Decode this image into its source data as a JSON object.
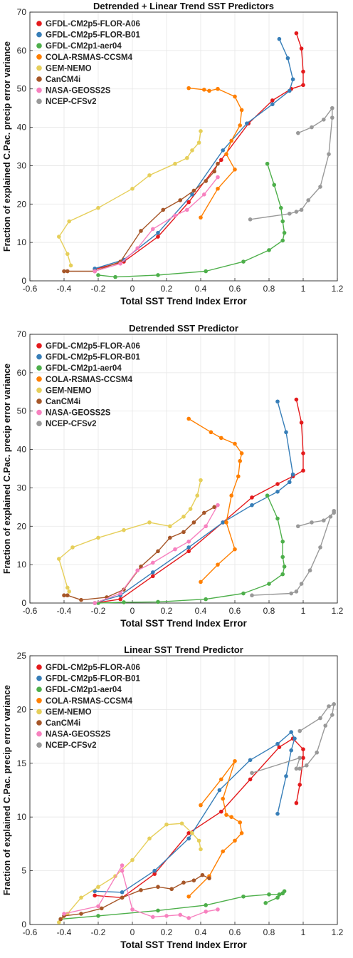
{
  "colors": {
    "GFDL-CM2p5-FLOR-A06": "#e41a1c",
    "GFDL-CM2p5-FLOR-B01": "#377eb8",
    "GFDL-CM2p1-aer04": "#4daf4a",
    "COLA-RSMAS-CCSM4": "#ff7f00",
    "GEM-NEMO": "#e6cf5a",
    "CanCM4i": "#a65628",
    "NASA-GEOSS2S": "#f781bf",
    "NCEP-CFSv2": "#999999"
  },
  "chart_data": [
    {
      "type": "line",
      "title": "Detrended + Linear Trend SST Predictors",
      "xlabel": "Total SST Trend Index Error",
      "ylabel": "Fraction of explained C.Pac. precip error variance",
      "xlim": [
        -0.6,
        1.2
      ],
      "ylim": [
        0,
        70
      ],
      "xticks": [
        "-0.6",
        "-0.4",
        "-0.2",
        "0",
        "0.2",
        "0.4",
        "0.6",
        "0.8",
        "1",
        "1.2"
      ],
      "yticks": [
        "0",
        "10",
        "20",
        "30",
        "40",
        "50",
        "60",
        "70"
      ],
      "grid": true,
      "legend": "top-left",
      "series": [
        {
          "name": "GFDL-CM2p5-FLOR-A06",
          "x": [
            -0.22,
            -0.05,
            0.15,
            0.33,
            0.52,
            0.68,
            0.82,
            0.93,
            1.0,
            1.0,
            0.99,
            0.96
          ],
          "y": [
            3.0,
            5.0,
            11.5,
            20.5,
            31.5,
            41.0,
            47.0,
            50.0,
            51.0,
            54.5,
            60.5,
            64.5
          ]
        },
        {
          "name": "GFDL-CM2p5-FLOR-B01",
          "x": [
            -0.22,
            -0.05,
            0.15,
            0.35,
            0.53,
            0.67,
            0.82,
            0.92,
            0.94,
            0.91,
            0.86
          ],
          "y": [
            3.2,
            5.5,
            12.5,
            22.5,
            34.0,
            41.0,
            46.0,
            49.5,
            52.5,
            58.0,
            63.0
          ]
        },
        {
          "name": "GFDL-CM2p1-aer04",
          "x": [
            -0.2,
            -0.1,
            0.15,
            0.43,
            0.65,
            0.8,
            0.88,
            0.89,
            0.88,
            0.87,
            0.83,
            0.79
          ],
          "y": [
            1.5,
            1.0,
            1.5,
            2.5,
            5.0,
            8.0,
            10.5,
            12.5,
            15.5,
            19.0,
            25.0,
            30.5
          ]
        },
        {
          "name": "COLA-RSMAS-CCSM4",
          "x": [
            0.4,
            0.5,
            0.6,
            0.55,
            0.58,
            0.63,
            0.64,
            0.6,
            0.5,
            0.45,
            0.42,
            0.33
          ],
          "y": [
            16.5,
            24.0,
            29.0,
            33.0,
            36.5,
            40.5,
            44.5,
            48.0,
            50.0,
            49.5,
            49.8,
            50.2
          ]
        },
        {
          "name": "GEM-NEMO",
          "x": [
            -0.36,
            -0.38,
            -0.43,
            -0.37,
            -0.2,
            0.0,
            0.1,
            0.25,
            0.32,
            0.35,
            0.39,
            0.4
          ],
          "y": [
            4.0,
            7.0,
            11.5,
            15.5,
            19.0,
            24.0,
            27.5,
            30.5,
            32.0,
            34.0,
            36.0,
            39.0
          ]
        },
        {
          "name": "CanCM4i",
          "x": [
            -0.4,
            -0.38,
            -0.22,
            -0.07,
            0.05,
            0.18,
            0.28,
            0.36,
            0.43,
            0.48,
            0.5
          ],
          "y": [
            2.5,
            2.5,
            2.5,
            5.0,
            13.0,
            18.5,
            21.0,
            23.5,
            26.0,
            28.5,
            30.5
          ]
        },
        {
          "name": "NASA-GEOSS2S",
          "x": [
            -0.22,
            -0.07,
            0.03,
            0.12,
            0.25,
            0.32,
            0.42,
            0.5
          ],
          "y": [
            2.5,
            4.5,
            8.5,
            13.5,
            17.0,
            18.5,
            22.5,
            27.0
          ]
        },
        {
          "name": "NCEP-CFSv2",
          "x": [
            0.69,
            0.92,
            0.96,
            0.99,
            1.03,
            1.1,
            1.15,
            1.17,
            1.17,
            1.12,
            1.05,
            0.97
          ],
          "y": [
            16.0,
            17.5,
            18.0,
            18.5,
            21.0,
            24.5,
            33.0,
            42.5,
            45.0,
            42.0,
            40.0,
            38.5
          ]
        }
      ]
    },
    {
      "type": "line",
      "title": "Detrended SST Predictor",
      "xlabel": "Total SST Trend Index Error",
      "ylabel": "Fraction of explained C.Pac. precip error variance",
      "xlim": [
        -0.6,
        1.2
      ],
      "ylim": [
        0,
        70
      ],
      "xticks": [
        "-0.6",
        "-0.4",
        "-0.2",
        "0",
        "0.2",
        "0.4",
        "0.6",
        "0.8",
        "1",
        "1.2"
      ],
      "yticks": [
        "0",
        "10",
        "20",
        "30",
        "40",
        "50",
        "60",
        "70"
      ],
      "grid": true,
      "legend": "top-left",
      "series": [
        {
          "name": "GFDL-CM2p5-FLOR-A06",
          "x": [
            -0.22,
            -0.07,
            0.12,
            0.33,
            0.53,
            0.7,
            0.85,
            0.94,
            1.0,
            1.0,
            0.99,
            0.96
          ],
          "y": [
            0.0,
            1.0,
            7.0,
            13.5,
            21.0,
            27.5,
            31.0,
            33.0,
            34.5,
            39.0,
            47.0,
            53.0
          ]
        },
        {
          "name": "GFDL-CM2p5-FLOR-B01",
          "x": [
            -0.22,
            -0.07,
            0.12,
            0.33,
            0.53,
            0.7,
            0.85,
            0.92,
            0.94,
            0.9,
            0.85
          ],
          "y": [
            0.0,
            2.0,
            8.0,
            14.5,
            21.0,
            25.5,
            29.0,
            31.5,
            33.5,
            44.5,
            52.5
          ]
        },
        {
          "name": "GFDL-CM2p1-aer04",
          "x": [
            -0.2,
            -0.05,
            0.15,
            0.43,
            0.65,
            0.8,
            0.88,
            0.89,
            0.88,
            0.88,
            0.85,
            0.79
          ],
          "y": [
            0.0,
            0.2,
            0.3,
            1.0,
            2.5,
            5.0,
            7.5,
            9.5,
            12.0,
            16.0,
            22.0,
            28.0
          ]
        },
        {
          "name": "COLA-RSMAS-CCSM4",
          "x": [
            0.4,
            0.5,
            0.6,
            0.55,
            0.58,
            0.62,
            0.63,
            0.64,
            0.6,
            0.52,
            0.46,
            0.33
          ],
          "y": [
            5.5,
            10.0,
            14.0,
            21.0,
            28.0,
            33.0,
            37.0,
            39.0,
            41.5,
            43.0,
            44.5,
            48.0
          ]
        },
        {
          "name": "GEM-NEMO",
          "x": [
            -0.37,
            -0.38,
            -0.43,
            -0.35,
            -0.2,
            -0.05,
            0.1,
            0.22,
            0.3,
            0.34,
            0.38,
            0.4
          ],
          "y": [
            3.0,
            4.0,
            11.5,
            14.5,
            17.0,
            19.0,
            21.0,
            20.0,
            22.5,
            24.5,
            28.0,
            32.0
          ]
        },
        {
          "name": "CanCM4i",
          "x": [
            -0.4,
            -0.38,
            -0.3,
            -0.15,
            -0.05,
            0.05,
            0.15,
            0.22,
            0.3,
            0.36,
            0.42,
            0.48
          ],
          "y": [
            2.0,
            2.0,
            0.8,
            1.5,
            3.5,
            9.5,
            13.5,
            17.0,
            18.5,
            21.0,
            23.5,
            25.0
          ]
        },
        {
          "name": "NASA-GEOSS2S",
          "x": [
            -0.22,
            -0.07,
            0.03,
            0.12,
            0.25,
            0.33,
            0.43,
            0.5
          ],
          "y": [
            0.0,
            2.5,
            8.5,
            10.5,
            14.0,
            16.0,
            20.0,
            25.5
          ]
        },
        {
          "name": "NCEP-CFSv2",
          "x": [
            0.7,
            0.93,
            0.96,
            0.99,
            1.04,
            1.1,
            1.16,
            1.18,
            1.18,
            1.12,
            1.05,
            0.97
          ],
          "y": [
            2.0,
            2.5,
            3.0,
            5.0,
            8.5,
            14.5,
            22.5,
            24.0,
            23.5,
            21.5,
            21.0,
            20.0
          ]
        }
      ]
    },
    {
      "type": "line",
      "title": "Linear SST Trend Predictor",
      "xlabel": "Total SST Trend Index Error",
      "ylabel": "Fraction of explained C.Pac. precip error variance",
      "xlim": [
        -0.6,
        1.2
      ],
      "ylim": [
        0,
        25
      ],
      "xticks": [
        "-0.6",
        "-0.4",
        "-0.2",
        "0",
        "0.2",
        "0.4",
        "0.6",
        "0.8",
        "1",
        "1.2"
      ],
      "yticks": [
        "0",
        "5",
        "10",
        "15",
        "20",
        "25"
      ],
      "grid": true,
      "legend": "top-left",
      "series": [
        {
          "name": "GFDL-CM2p5-FLOR-A06",
          "x": [
            -0.22,
            -0.06,
            0.13,
            0.33,
            0.52,
            0.69,
            0.86,
            0.94,
            1.0,
            1.0,
            0.98,
            0.96
          ],
          "y": [
            2.7,
            2.5,
            4.7,
            8.5,
            10.5,
            13.5,
            16.5,
            17.3,
            16.3,
            15.5,
            13.0,
            11.3
          ]
        },
        {
          "name": "GFDL-CM2p5-FLOR-B01",
          "x": [
            -0.22,
            -0.06,
            0.13,
            0.33,
            0.51,
            0.69,
            0.85,
            0.93,
            0.95,
            0.93,
            0.9,
            0.85
          ],
          "y": [
            3.1,
            3.0,
            5.0,
            8.0,
            12.5,
            15.3,
            16.8,
            17.9,
            17.3,
            16.2,
            13.8,
            10.3
          ]
        },
        {
          "name": "GFDL-CM2p1-aer04",
          "x": [
            -0.42,
            -0.2,
            0.15,
            0.43,
            0.65,
            0.8,
            0.86,
            0.88,
            0.89,
            0.88,
            0.85,
            0.78
          ],
          "y": [
            0.5,
            0.8,
            1.3,
            1.8,
            2.6,
            2.8,
            2.8,
            2.9,
            3.1,
            2.9,
            2.5,
            2.0
          ]
        },
        {
          "name": "COLA-RSMAS-CCSM4",
          "x": [
            0.4,
            0.52,
            0.6,
            0.53,
            0.55,
            0.58,
            0.63,
            0.64,
            0.6,
            0.53,
            0.45,
            0.33
          ],
          "y": [
            11.1,
            13.5,
            15.2,
            11.7,
            10.2,
            10.0,
            9.5,
            8.5,
            7.8,
            6.8,
            4.5,
            2.6
          ]
        },
        {
          "name": "GEM-NEMO",
          "x": [
            -0.43,
            -0.38,
            -0.3,
            -0.2,
            -0.1,
            0.0,
            0.1,
            0.2,
            0.29,
            0.35,
            0.39,
            0.4
          ],
          "y": [
            0.2,
            1.0,
            2.5,
            3.5,
            4.5,
            6.0,
            8.0,
            9.3,
            9.4,
            8.5,
            7.8,
            7.0
          ]
        },
        {
          "name": "CanCM4i",
          "x": [
            -0.42,
            -0.4,
            -0.3,
            -0.18,
            -0.06,
            0.05,
            0.15,
            0.23,
            0.3,
            0.36,
            0.41,
            0.45
          ],
          "y": [
            0.5,
            0.8,
            1.0,
            1.5,
            2.5,
            3.2,
            3.5,
            3.3,
            3.9,
            4.1,
            4.6,
            4.3
          ]
        },
        {
          "name": "NASA-GEOSS2S",
          "x": [
            -0.4,
            -0.2,
            -0.06,
            -0.06,
            0.0,
            0.12,
            0.2,
            0.28,
            0.33,
            0.43,
            0.5
          ],
          "y": [
            1.0,
            1.7,
            5.5,
            5.0,
            1.4,
            0.7,
            0.8,
            0.9,
            0.6,
            1.2,
            1.4
          ]
        },
        {
          "name": "NCEP-CFSv2",
          "x": [
            0.7,
            0.98,
            0.96,
            0.98,
            1.02,
            1.08,
            1.13,
            1.17,
            1.18,
            1.15,
            1.1,
            0.98
          ],
          "y": [
            14.1,
            15.5,
            14.5,
            14.5,
            14.8,
            16.0,
            18.5,
            19.5,
            20.5,
            20.3,
            19.2,
            18.0
          ]
        }
      ]
    }
  ]
}
